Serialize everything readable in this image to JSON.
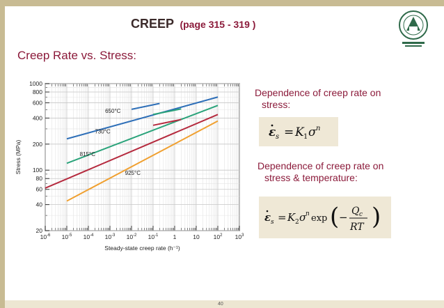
{
  "slide": {
    "title": "CREEP",
    "title_pages": "(page 315 - 319 )",
    "subtitle": "Creep Rate vs. Stress:",
    "right_text_1_line1": "Dependence of creep rate on",
    "right_text_1_line2": "stress:",
    "right_text_2_line1": "Dependence of creep rate on",
    "right_text_2_line2": "stress & temperature:",
    "page_number": "40"
  },
  "colors": {
    "frame": "#c8bb93",
    "title_text": "#8b1a3a",
    "equation_bg": "#efe8d6"
  },
  "equations": {
    "eq1": "ε̇s = K1σ^n",
    "eq2": "ε̇s = K2σ^n exp(−Qc/RT)"
  },
  "chart_data": {
    "type": "line",
    "xscale": "log",
    "yscale": "log",
    "xlim": [
      1e-06,
      1000
    ],
    "ylim": [
      20,
      1000
    ],
    "xlabel": "Steady-state creep rate (h⁻¹)",
    "ylabel": "Stress (MPa)",
    "x_ticks": [
      {
        "v": 1e-06,
        "label": "10",
        "exp": "-6"
      },
      {
        "v": 1e-05,
        "label": "10",
        "exp": "-5"
      },
      {
        "v": 0.0001,
        "label": "10",
        "exp": "-4"
      },
      {
        "v": 0.001,
        "label": "10",
        "exp": "-3"
      },
      {
        "v": 0.01,
        "label": "10",
        "exp": "-2"
      },
      {
        "v": 0.1,
        "label": "10",
        "exp": "-1"
      },
      {
        "v": 1,
        "label": "1",
        "exp": ""
      },
      {
        "v": 10,
        "label": "10",
        "exp": ""
      },
      {
        "v": 100,
        "label": "10",
        "exp": "2"
      },
      {
        "v": 1000,
        "label": "10",
        "exp": "3"
      }
    ],
    "y_ticks": [
      1000,
      800,
      600,
      400,
      200,
      100,
      80,
      60,
      40,
      20
    ],
    "grid": true,
    "series": [
      {
        "name": "650°C",
        "color": "#2e6fb8",
        "x": [
          1e-05,
          100
        ],
        "y": [
          230,
          700
        ],
        "segment_x": [
          0.01,
          0.2
        ],
        "segment_y": [
          505,
          590
        ]
      },
      {
        "name": "730°C",
        "color": "#2aa37a",
        "x": [
          1e-05,
          100
        ],
        "y": [
          120,
          560
        ],
        "segment_x": [
          0.1,
          2
        ],
        "segment_y": [
          440,
          510
        ]
      },
      {
        "name": "815°C",
        "color": "#b52a3e",
        "x": [
          1e-06,
          100
        ],
        "y": [
          62,
          440
        ],
        "segment_x": [
          0.1,
          2
        ],
        "segment_y": [
          330,
          385
        ]
      },
      {
        "name": "925°C",
        "color": "#f0a030",
        "x": [
          1e-05,
          100
        ],
        "y": [
          44,
          370
        ]
      }
    ],
    "label_positions": [
      {
        "series": "650°C",
        "x": 0.0006,
        "y": 460
      },
      {
        "series": "730°C",
        "x": 0.0002,
        "y": 265
      },
      {
        "series": "815°C",
        "x": 4e-05,
        "y": 145
      },
      {
        "series": "925°C",
        "x": 0.005,
        "y": 88
      }
    ]
  }
}
